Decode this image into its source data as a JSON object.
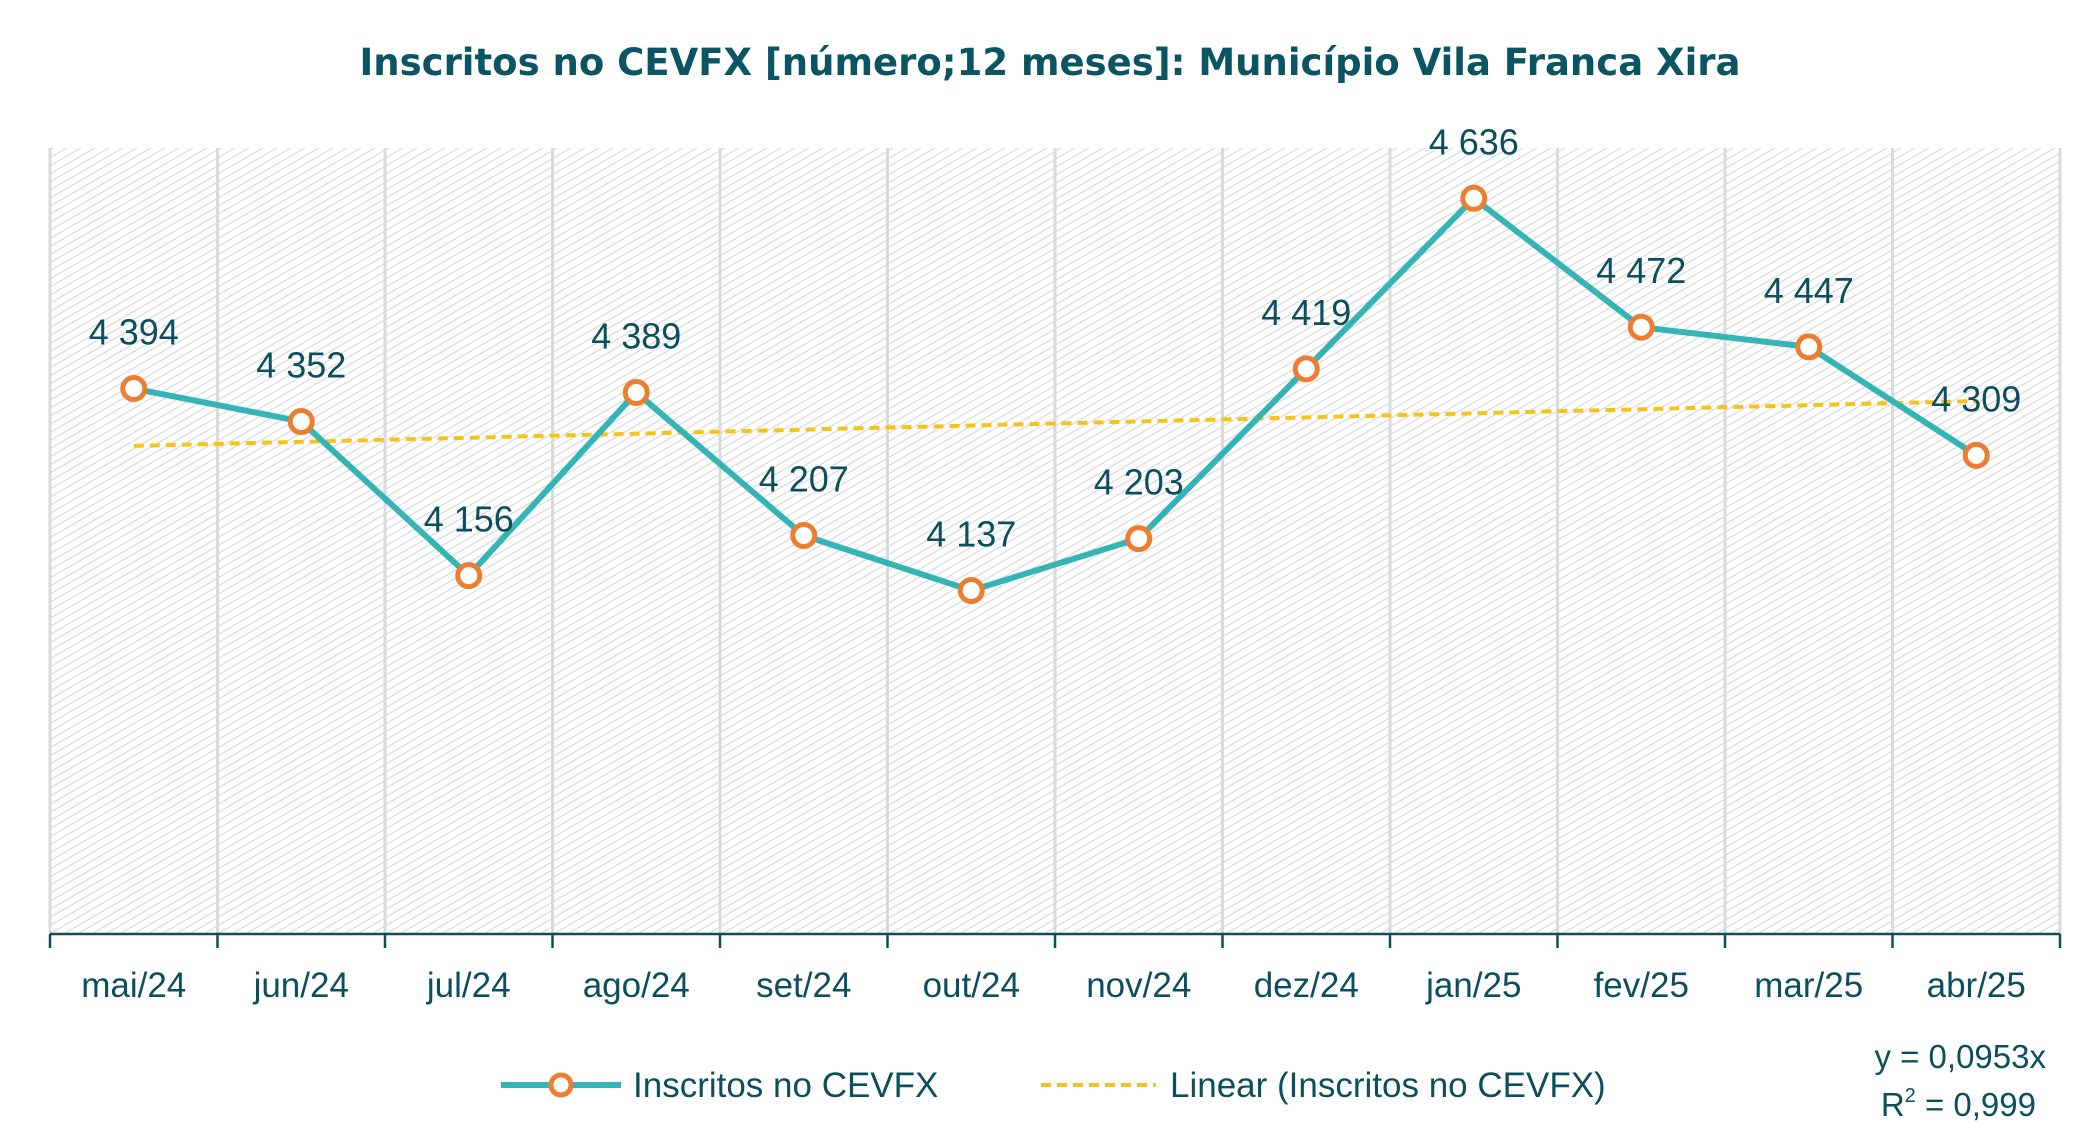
{
  "chart_data": {
    "type": "line",
    "title": "Inscritos no CEVFX [número;12 meses]: Município Vila Franca Xira",
    "xlabel": "",
    "ylabel": "",
    "categories": [
      "mai/24",
      "jun/24",
      "jul/24",
      "ago/24",
      "set/24",
      "out/24",
      "nov/24",
      "dez/24",
      "jan/25",
      "fev/25",
      "mar/25",
      "abr/25"
    ],
    "series": [
      {
        "name": "Inscritos no CEVFX",
        "values": [
          4394,
          4352,
          4156,
          4389,
          4207,
          4137,
          4203,
          4419,
          4636,
          4472,
          4447,
          4309
        ],
        "labels": [
          "4 394",
          "4 352",
          "4 156",
          "4 389",
          "4 207",
          "4 137",
          "4 203",
          "4 419",
          "4 636",
          "4 472",
          "4 447",
          "4 309"
        ],
        "color": "#35b4b5",
        "marker_color": "#ed7d31",
        "style": "solid"
      },
      {
        "name": "Linear (Inscritos no CEVFX)",
        "type": "trendline",
        "start": 4321,
        "end": 4378,
        "color": "#f5c41a",
        "style": "dashed"
      }
    ],
    "ylim": [
      3700,
      4700
    ],
    "grid": "vertical",
    "legend_position": "bottom",
    "trend_equation": "y = 0,0953x",
    "r_squared_label": "R",
    "r_squared_exp": "2",
    "r_squared_value": " = 0,999",
    "colors": {
      "title": "#0b5563",
      "text": "#0b4f5e",
      "axis": "#0b4f5e",
      "grid": "#dadada"
    }
  }
}
